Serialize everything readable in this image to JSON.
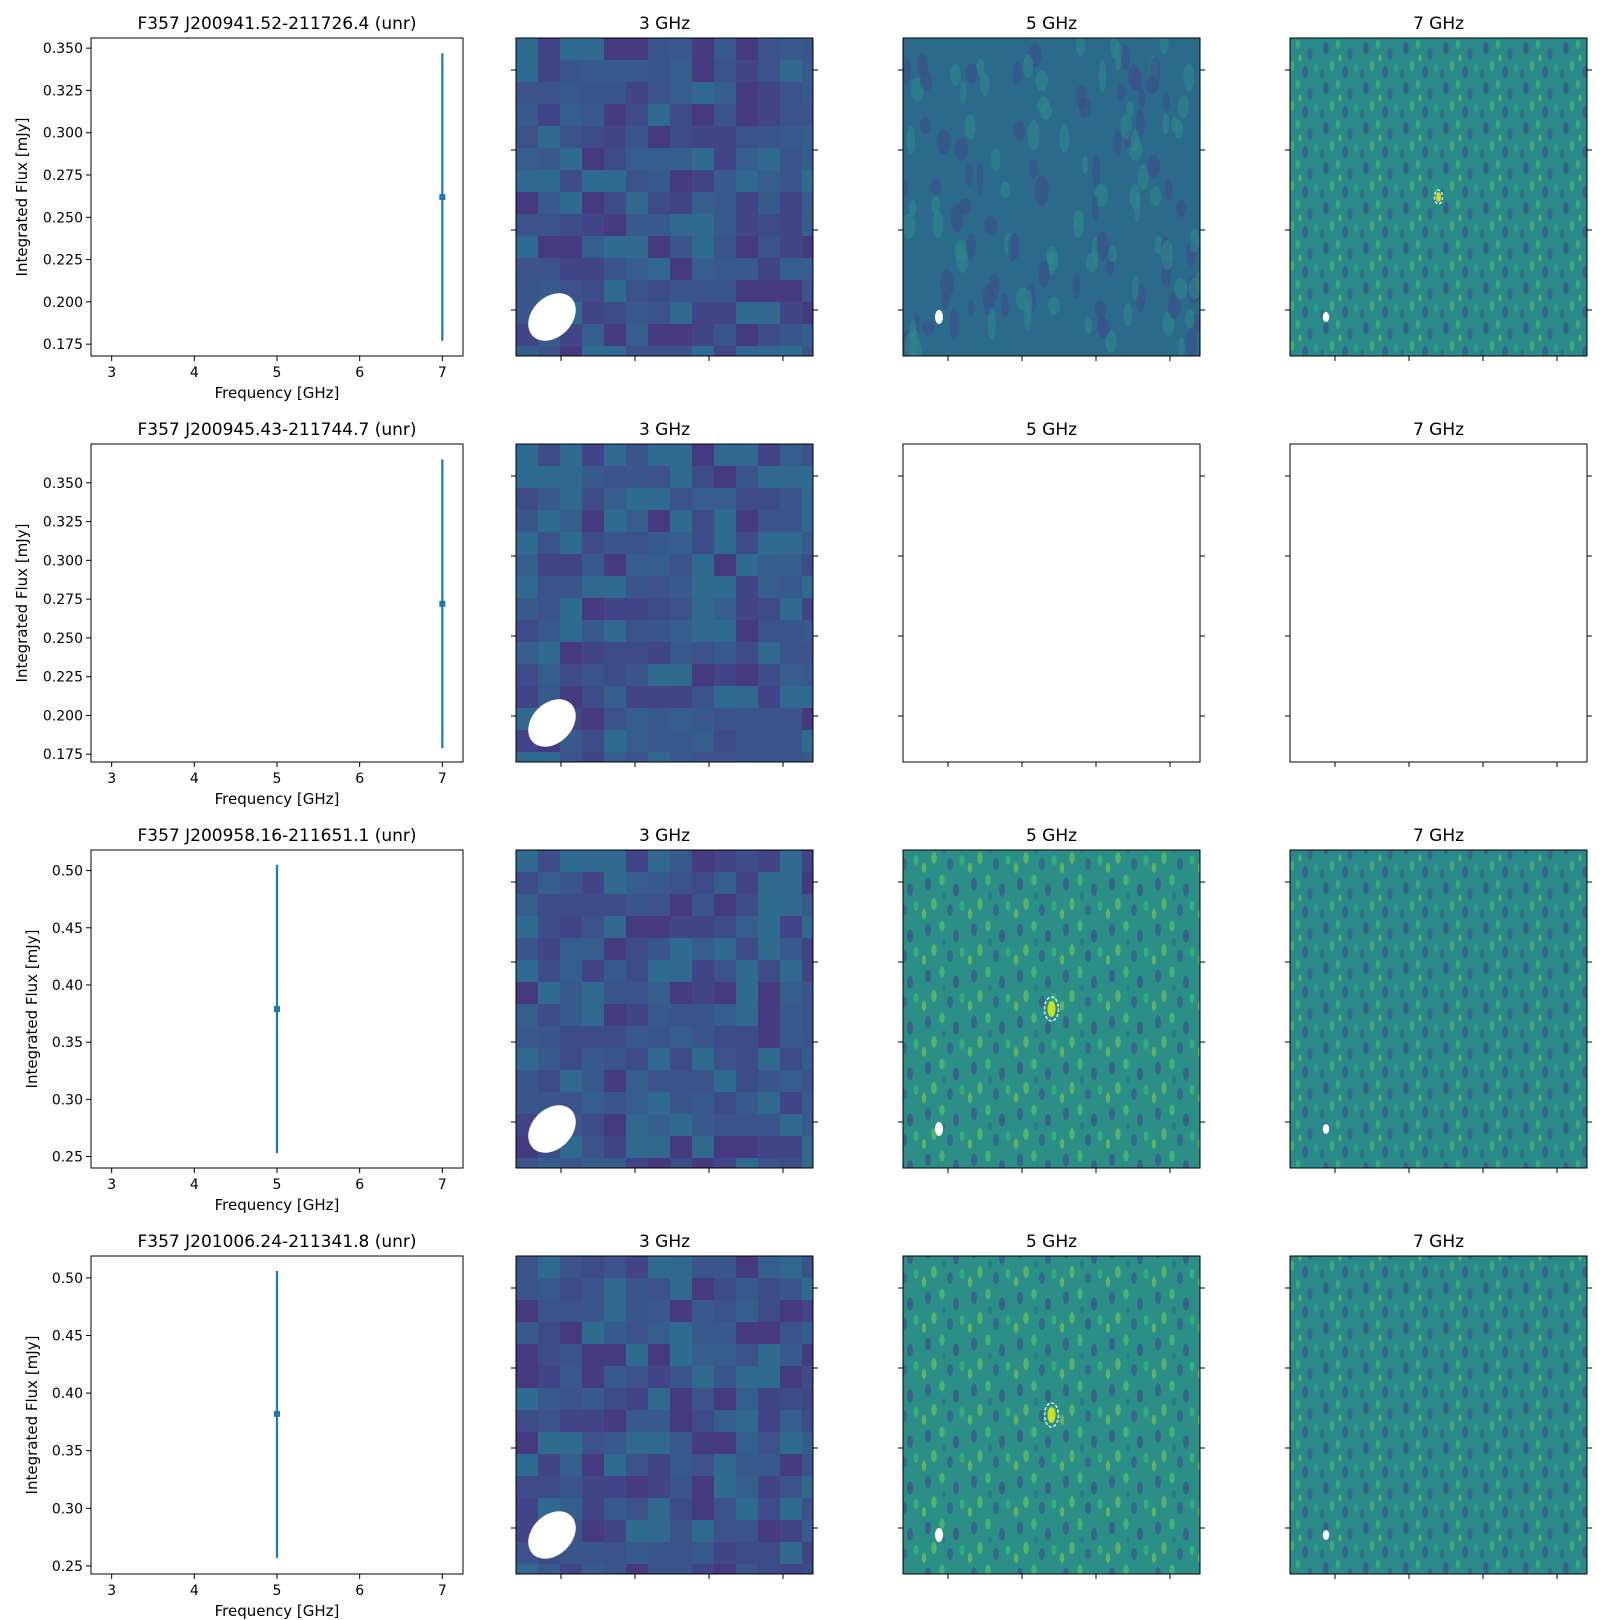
{
  "figure": {
    "rows": [
      {
        "sed_title": "F357 J200941.52-211726.4 (unr)",
        "image_titles": [
          "3 GHz",
          "5 GHz",
          "7 GHz"
        ],
        "image_states": [
          "noise_coarse",
          "noise_fine",
          "noise_fine_source"
        ]
      },
      {
        "sed_title": "F357 J200945.43-211744.7 (unr)",
        "image_titles": [
          "3 GHz",
          "5 GHz",
          "7 GHz"
        ],
        "image_states": [
          "noise_coarse",
          "blank",
          "blank"
        ]
      },
      {
        "sed_title": "F357 J200958.16-211651.1 (unr)",
        "image_titles": [
          "3 GHz",
          "5 GHz",
          "7 GHz"
        ],
        "image_states": [
          "noise_coarse",
          "noise_fine_source",
          "noise_fine"
        ]
      },
      {
        "sed_title": "F357 J201006.24-211341.8 (unr)",
        "image_titles": [
          "3 GHz",
          "5 GHz",
          "7 GHz"
        ],
        "image_states": [
          "noise_coarse",
          "noise_fine_source",
          "noise_fine"
        ]
      }
    ]
  },
  "chart_data": [
    {
      "type": "scatter",
      "title": "F357 J200941.52-211726.4 (unr)",
      "xlabel": "Frequency [GHz]",
      "ylabel": "Integrated Flux [mJy]",
      "xlim": [
        2.75,
        7.25
      ],
      "ylim": [
        0.168,
        0.356
      ],
      "xticks": [
        3,
        4,
        5,
        6,
        7
      ],
      "yticks": [
        0.175,
        0.2,
        0.225,
        0.25,
        0.275,
        0.3,
        0.325,
        0.35
      ],
      "ytick_labels": [
        "0.175",
        "0.200",
        "0.225",
        "0.250",
        "0.275",
        "0.300",
        "0.325",
        "0.350"
      ],
      "points": [
        {
          "x": 7,
          "y": 0.262,
          "yerr_low": 0.177,
          "yerr_high": 0.347
        }
      ],
      "color": "#1f77b4"
    },
    {
      "type": "scatter",
      "title": "F357 J200945.43-211744.7 (unr)",
      "xlabel": "Frequency [GHz]",
      "ylabel": "Integrated Flux [mJy]",
      "xlim": [
        2.75,
        7.25
      ],
      "ylim": [
        0.17,
        0.375
      ],
      "xticks": [
        3,
        4,
        5,
        6,
        7
      ],
      "yticks": [
        0.175,
        0.2,
        0.225,
        0.25,
        0.275,
        0.3,
        0.325,
        0.35
      ],
      "ytick_labels": [
        "0.175",
        "0.200",
        "0.225",
        "0.250",
        "0.275",
        "0.300",
        "0.325",
        "0.350"
      ],
      "points": [
        {
          "x": 7,
          "y": 0.272,
          "yerr_low": 0.179,
          "yerr_high": 0.365
        }
      ],
      "color": "#1f77b4"
    },
    {
      "type": "scatter",
      "title": "F357 J200958.16-211651.1 (unr)",
      "xlabel": "Frequency [GHz]",
      "ylabel": "Integrated Flux [mJy]",
      "xlim": [
        2.75,
        7.25
      ],
      "ylim": [
        0.24,
        0.518
      ],
      "xticks": [
        3,
        4,
        5,
        6,
        7
      ],
      "yticks": [
        0.25,
        0.3,
        0.35,
        0.4,
        0.45,
        0.5
      ],
      "ytick_labels": [
        "0.25",
        "0.30",
        "0.35",
        "0.40",
        "0.45",
        "0.50"
      ],
      "points": [
        {
          "x": 5,
          "y": 0.379,
          "yerr_low": 0.253,
          "yerr_high": 0.505
        }
      ],
      "color": "#1f77b4"
    },
    {
      "type": "scatter",
      "title": "F357 J201006.24-211341.8 (unr)",
      "xlabel": "Frequency [GHz]",
      "ylabel": "Integrated Flux [mJy]",
      "xlim": [
        2.75,
        7.25
      ],
      "ylim": [
        0.243,
        0.519
      ],
      "xticks": [
        3,
        4,
        5,
        6,
        7
      ],
      "yticks": [
        0.25,
        0.3,
        0.35,
        0.4,
        0.45,
        0.5
      ],
      "ytick_labels": [
        "0.25",
        "0.30",
        "0.35",
        "0.40",
        "0.45",
        "0.50"
      ],
      "points": [
        {
          "x": 5,
          "y": 0.382,
          "yerr_low": 0.257,
          "yerr_high": 0.506
        }
      ],
      "color": "#1f77b4"
    }
  ]
}
